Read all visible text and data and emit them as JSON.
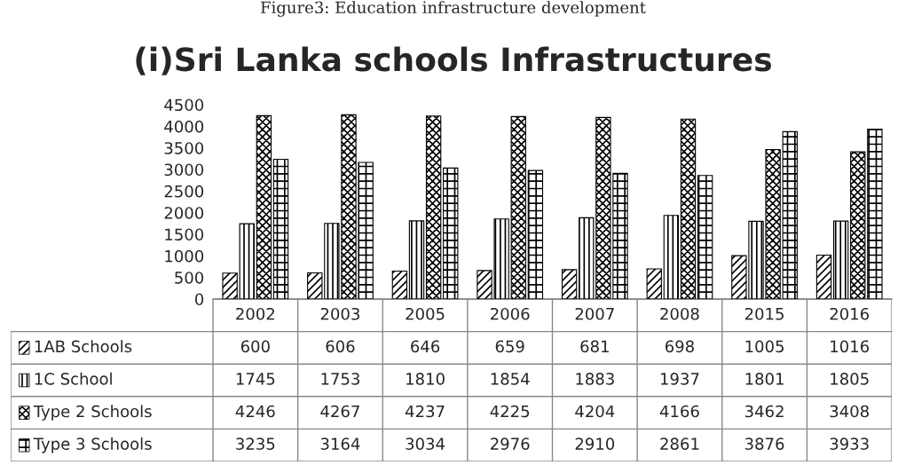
{
  "chart_data": {
    "type": "bar",
    "title": "(i)Sri Lanka schools Infrastructures",
    "annotations": [
      "Figure3: Education infrastructure development"
    ],
    "categories": [
      "2002",
      "2003",
      "2005",
      "2006",
      "2007",
      "2008",
      "2015",
      "2016"
    ],
    "series": [
      {
        "name": "1AB Schools",
        "color": "#000000",
        "values": [
          600,
          606,
          646,
          659,
          681,
          698,
          1005,
          1016
        ]
      },
      {
        "name": "1C School",
        "color": "#000000",
        "values": [
          1745,
          1753,
          1810,
          1854,
          1883,
          1937,
          1801,
          1805
        ]
      },
      {
        "name": "Type 2 Schools",
        "color": "#000000",
        "values": [
          4246,
          4267,
          4237,
          4225,
          4204,
          4166,
          3462,
          3408
        ]
      },
      {
        "name": "Type 3 Schools",
        "color": "#000000",
        "values": [
          3235,
          3164,
          3034,
          2976,
          2910,
          2861,
          3876,
          3933
        ]
      }
    ],
    "ylim": [
      0,
      4500
    ],
    "yticks": [
      0,
      500,
      1000,
      1500,
      2000,
      2500,
      3000,
      3500,
      4000,
      4500
    ],
    "grid": false,
    "legend": "bottom",
    "data_labels": true
  }
}
